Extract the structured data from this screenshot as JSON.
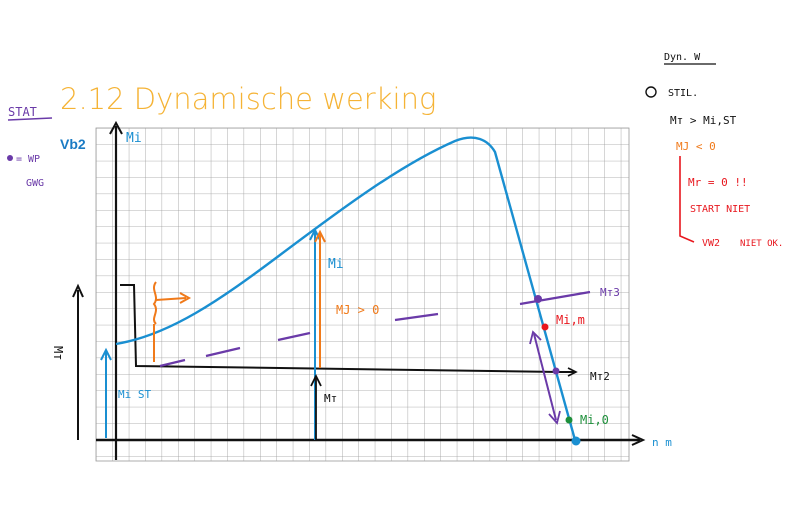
{
  "slide": {
    "title": "2.12 Dynamische werking",
    "example_label": "Vb2"
  },
  "annotations": {
    "left": {
      "stat": "STAT",
      "wp": "= WP",
      "gwg": "GWG",
      "axis_mt": "Mт"
    },
    "top_right": {
      "header": "Dyn. W",
      "step1": "STIL.",
      "cond": "Mт > Mi,ST",
      "mj_neg": "MJ < 0",
      "mr_zero": "Mr = 0 !!",
      "start_niet": "START NIET",
      "vw2": "VW2",
      "niet_ok": "NIET OK."
    },
    "chart": {
      "mi_axis": "Mi",
      "mi_curve": "Mi",
      "mj_pos": "MJ > 0",
      "mt_marker": "Mт",
      "mi_st": "Mi ST",
      "mt3": "Mт3",
      "mt2": "Mт2",
      "mim": "Mi,m",
      "mi0": "Mi,0",
      "x_axis": "n m"
    }
  },
  "colors": {
    "title": "#f5b335",
    "blue": "#1a8fd1",
    "orange": "#f07a1a",
    "purple": "#6a3aa8",
    "red": "#e8171e",
    "green": "#1d8f3a",
    "black": "#111111",
    "grid": "#9a9a9a"
  }
}
